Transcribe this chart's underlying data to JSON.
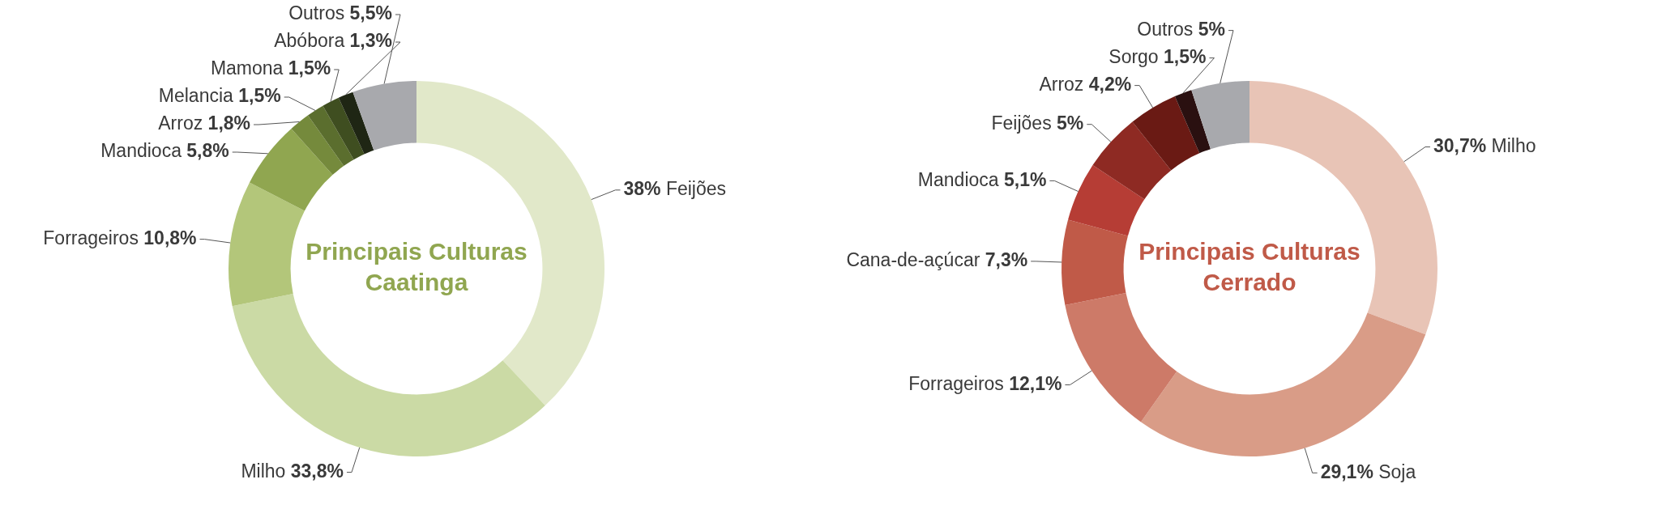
{
  "chart_data": [
    {
      "type": "donut",
      "title": "Principais Culturas Caatinga",
      "categories": [
        "Feijões",
        "Milho",
        "Forrageiros",
        "Mandioca",
        "Arroz",
        "Melancia",
        "Mamona",
        "Abóbora",
        "Outros"
      ],
      "values": [
        38,
        33.8,
        10.8,
        5.8,
        1.8,
        1.5,
        1.5,
        1.3,
        5.5
      ],
      "value_labels": [
        "38%",
        "33,8%",
        "10,8%",
        "5,8%",
        "1,8%",
        "1,5%",
        "1,5%",
        "1,3%",
        "5,5%"
      ],
      "colors": [
        "#e1e8c9",
        "#cbdaa5",
        "#b3c67a",
        "#90a650",
        "#758a3c",
        "#5b6e2e",
        "#3f4e20",
        "#1f2614",
        "#a8a9ad"
      ]
    },
    {
      "type": "donut",
      "title": "Principais Culturas Cerrado",
      "categories": [
        "Milho",
        "Soja",
        "Forrageiros",
        "Cana-de-açúcar",
        "Mandioca",
        "Feijões",
        "Arroz",
        "Sorgo",
        "Outros"
      ],
      "values": [
        30.7,
        29.1,
        12.1,
        7.3,
        5.1,
        5,
        4.2,
        1.5,
        5
      ],
      "value_labels": [
        "30,7%",
        "29,1%",
        "12,1%",
        "7,3%",
        "5,1%",
        "5%",
        "4,2%",
        "1,5%",
        "5%"
      ],
      "colors": [
        "#e8c4b6",
        "#d99c87",
        "#cd7a68",
        "#c05a48",
        "#b63d35",
        "#8e2a23",
        "#6a1a14",
        "#2a1010",
        "#a8a9ad"
      ]
    }
  ]
}
